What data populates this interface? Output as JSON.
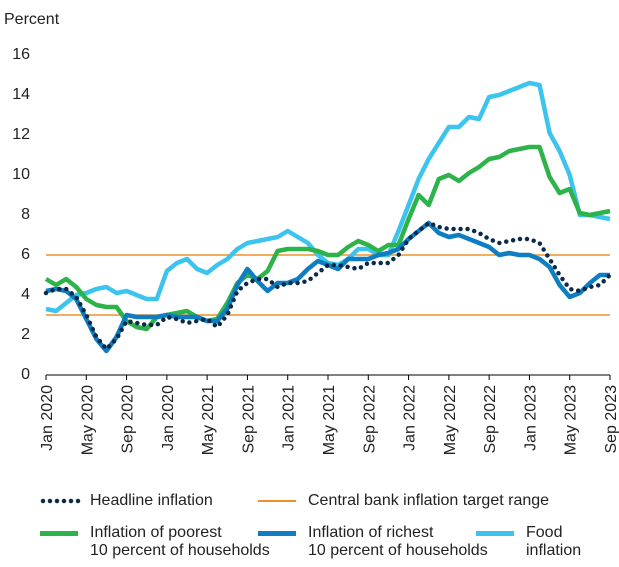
{
  "chart_data": {
    "type": "line",
    "y_label": "Percent",
    "categories": [
      "Jan 2020",
      null,
      null,
      null,
      "May 2020",
      null,
      null,
      null,
      "Sep 2020",
      null,
      null,
      null,
      "Jan 2020",
      null,
      null,
      null,
      "May 2021",
      null,
      null,
      null,
      "Sep 2021",
      null,
      null,
      null,
      "Jan 2021",
      null,
      null,
      null,
      "May 2021",
      null,
      null,
      null,
      "Sep 2022",
      null,
      null,
      null,
      "Jan 2022",
      null,
      null,
      null,
      "May 2022",
      null,
      null,
      null,
      "Sep 2022",
      null,
      null,
      null,
      "Jan 2023",
      null,
      null,
      null,
      "May 2023",
      null,
      null,
      null,
      "Sep 2023"
    ],
    "ylim": [
      0,
      16
    ],
    "yticks": [
      0,
      2,
      4,
      6,
      8,
      10,
      12,
      14,
      16
    ],
    "target_range": {
      "name": "Central bank inflation target range",
      "color": "#f0902a",
      "values": [
        3,
        6
      ]
    },
    "series": [
      {
        "name": "Food\ninflation",
        "color": "#3cc4ee",
        "style": "solid",
        "values": [
          3.3,
          3.2,
          3.6,
          4.0,
          4.1,
          4.3,
          4.4,
          4.1,
          4.2,
          4.0,
          3.8,
          3.8,
          5.2,
          5.6,
          5.8,
          5.3,
          5.1,
          5.5,
          5.8,
          6.3,
          6.6,
          6.7,
          6.8,
          6.9,
          7.2,
          6.9,
          6.6,
          6.0,
          5.6,
          5.5,
          5.8,
          6.3,
          6.3,
          6.0,
          6.0,
          7.2,
          8.5,
          9.8,
          10.8,
          11.6,
          12.4,
          12.4,
          12.9,
          12.8,
          13.9,
          14.0,
          14.2,
          14.4,
          14.6,
          14.5,
          12.1,
          11.2,
          10.0,
          8.0,
          8.0,
          7.9,
          7.8
        ]
      },
      {
        "name": "Inflation of poorest\n10 percent of households",
        "color": "#2db34a",
        "style": "solid",
        "values": [
          4.8,
          4.5,
          4.8,
          4.4,
          3.8,
          3.5,
          3.4,
          3.4,
          2.7,
          2.4,
          2.3,
          2.9,
          3.0,
          3.1,
          3.2,
          2.9,
          2.7,
          2.8,
          3.6,
          4.6,
          5.0,
          4.8,
          5.2,
          6.2,
          6.3,
          6.3,
          6.3,
          6.2,
          6.0,
          6.0,
          6.4,
          6.7,
          6.5,
          6.2,
          6.5,
          6.5,
          7.8,
          9.0,
          8.5,
          9.8,
          10.0,
          9.7,
          10.1,
          10.4,
          10.8,
          10.9,
          11.2,
          11.3,
          11.4,
          11.4,
          9.9,
          9.1,
          9.3,
          8.1,
          8.0,
          8.1,
          8.2
        ]
      },
      {
        "name": "Inflation of richest\n10 percent of households",
        "color": "#0e7dc2",
        "style": "solid",
        "values": [
          4.2,
          4.3,
          4.2,
          3.8,
          2.8,
          1.8,
          1.2,
          1.9,
          3.0,
          2.9,
          2.9,
          2.9,
          3.0,
          2.9,
          2.9,
          2.9,
          2.7,
          2.7,
          3.3,
          4.5,
          5.3,
          4.7,
          4.2,
          4.6,
          4.6,
          4.8,
          5.3,
          5.7,
          5.5,
          5.3,
          5.8,
          5.8,
          5.8,
          6.0,
          6.1,
          6.3,
          6.8,
          7.2,
          7.6,
          7.1,
          6.9,
          7.0,
          6.8,
          6.6,
          6.4,
          6.0,
          6.1,
          6.0,
          6.0,
          5.8,
          5.4,
          4.5,
          3.9,
          4.1,
          4.6,
          5.0,
          5.0
        ]
      },
      {
        "name": "Headline inflation",
        "color": "#0b2a4a",
        "style": "dotted",
        "values": [
          4.1,
          4.3,
          4.3,
          3.9,
          3.0,
          1.9,
          1.3,
          1.8,
          2.7,
          2.6,
          2.5,
          2.5,
          2.9,
          2.8,
          2.6,
          2.7,
          2.8,
          2.4,
          3.0,
          4.2,
          4.6,
          4.8,
          4.8,
          4.4,
          4.6,
          4.6,
          4.7,
          5.1,
          5.5,
          5.5,
          5.4,
          5.3,
          5.6,
          5.6,
          5.6,
          6.0,
          6.8,
          7.2,
          7.6,
          7.4,
          7.3,
          7.3,
          7.3,
          7.1,
          6.8,
          6.6,
          6.7,
          6.8,
          6.8,
          6.6,
          5.8,
          5.0,
          4.3,
          4.2,
          4.4,
          4.5,
          5.0
        ]
      }
    ]
  }
}
